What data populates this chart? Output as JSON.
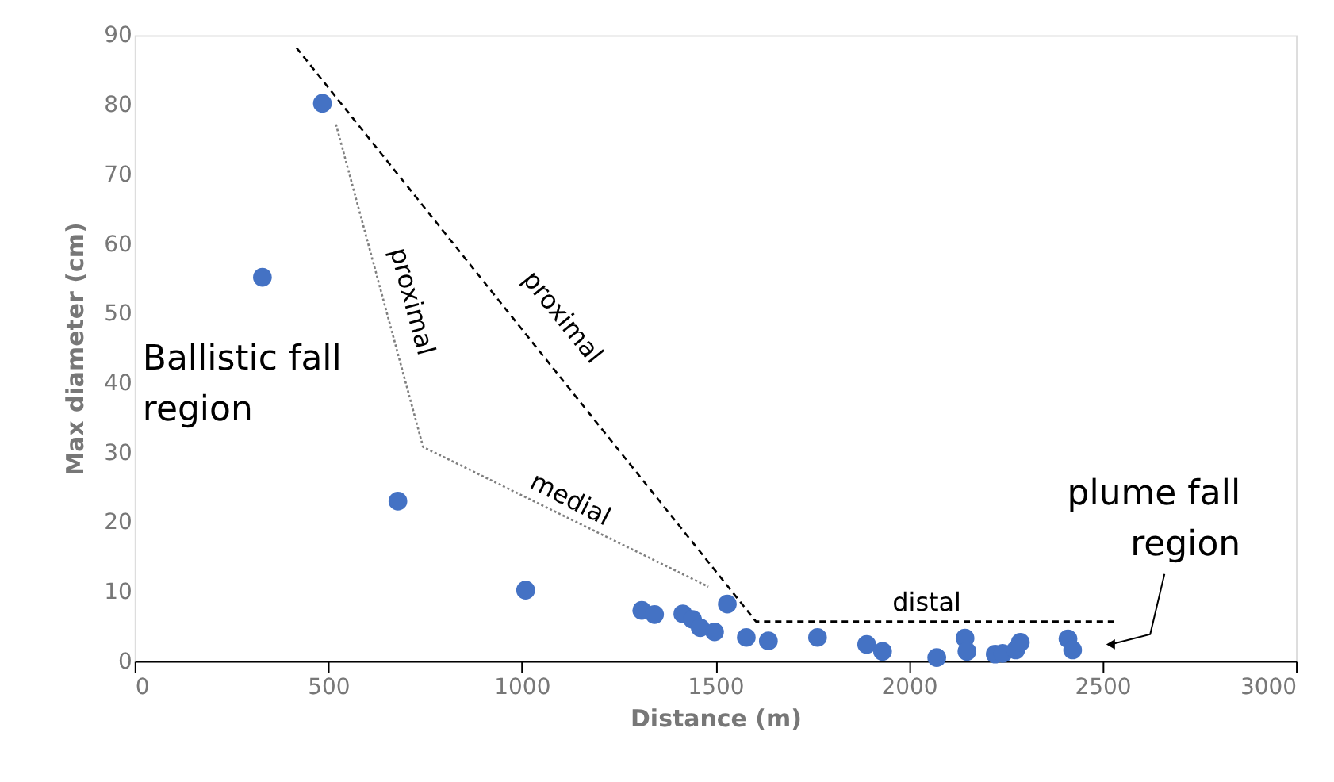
{
  "chart_data": {
    "type": "scatter",
    "xlabel": "Distance (m)",
    "ylabel": "Max diameter (cm)",
    "xlim": [
      0,
      3000
    ],
    "xticks": [
      0,
      500,
      1000,
      1500,
      2000,
      2500,
      3000
    ],
    "ylim": [
      0,
      90
    ],
    "yticks": [
      0,
      10,
      20,
      30,
      40,
      50,
      60,
      70,
      80,
      90
    ],
    "grid": false,
    "series": [
      {
        "color": "#4472c4",
        "marker": "circle",
        "x": [
          330,
          485,
          680,
          1010,
          1310,
          1343,
          1416,
          1441,
          1461,
          1498,
          1531,
          1580,
          1637,
          1764,
          1891,
          1932,
          2072,
          2145,
          2150,
          2223,
          2243,
          2276,
          2288,
          2411,
          2423
        ],
        "values": [
          55.2,
          80.2,
          23.0,
          10.2,
          7.3,
          6.7,
          6.8,
          6.0,
          4.8,
          4.2,
          8.2,
          3.4,
          2.9,
          3.4,
          2.4,
          1.4,
          0.5,
          3.3,
          1.4,
          1.0,
          1.1,
          1.6,
          2.7,
          3.2,
          1.6
        ]
      },
      {
        "type": "line",
        "color": "#000000",
        "line_style": "dashed",
        "x": [
          418,
          1605,
          2538
        ],
        "values": [
          88.2,
          5.7,
          5.7
        ]
      },
      {
        "type": "line",
        "color": "#808080",
        "line_style": "dotted",
        "x": [
          520,
          745,
          1482
        ],
        "values": [
          77.2,
          30.8,
          10.7
        ]
      }
    ],
    "annotations": [
      "proximal",
      "proximal",
      "medial",
      "distal",
      "Ballistic fall\nregion",
      "plume fall\nregion"
    ]
  }
}
